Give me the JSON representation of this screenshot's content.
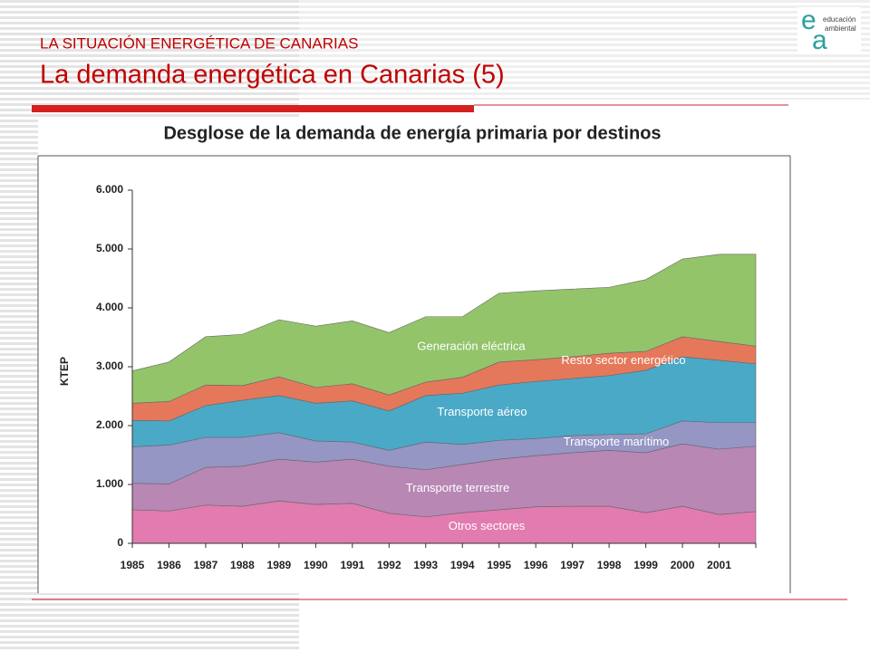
{
  "header": {
    "kicker": "LA SITUACIÓN ENERGÉTICA DE CANARIAS",
    "title": "La demanda energética en Canarias (5)",
    "logo": {
      "e": "e",
      "a": "a",
      "line1": "educación",
      "line2": "ambiental"
    }
  },
  "chart_data": {
    "type": "stacked_area",
    "title": "Desglose de la demanda de energía primaria por destinos",
    "y_label": "KTEP",
    "categories": [
      "1985",
      "1986",
      "1987",
      "1988",
      "1989",
      "1990",
      "1991",
      "1992",
      "1993",
      "1994",
      "1995",
      "1996",
      "1997",
      "1998",
      "1999",
      "2000",
      "2001",
      null
    ],
    "ylim": [
      0,
      6000
    ],
    "yticks": [
      0,
      {
        "value": 1000,
        "label": "1.000"
      },
      {
        "value": 2000,
        "label": "2.000"
      },
      {
        "value": 3000,
        "label": "3.000"
      },
      {
        "value": 4000,
        "label": "4.000"
      },
      {
        "value": 5000,
        "label": "5.000"
      },
      {
        "value": 6000,
        "label": "6.000"
      }
    ],
    "series": [
      {
        "name": "Otros sectores",
        "color": "#e27bb0",
        "values": [
          570,
          550,
          650,
          630,
          720,
          660,
          680,
          510,
          450,
          520,
          570,
          620,
          630,
          630,
          520,
          630,
          490,
          540
        ]
      },
      {
        "name": "Transporte terrestre",
        "color": "#b887b4",
        "values": [
          450,
          460,
          640,
          680,
          710,
          720,
          750,
          800,
          800,
          820,
          860,
          870,
          910,
          950,
          1020,
          1060,
          1110,
          1110
        ]
      },
      {
        "name": "Transporte marítimo",
        "color": "#9596c4",
        "values": [
          620,
          660,
          510,
          490,
          450,
          360,
          290,
          270,
          470,
          340,
          320,
          290,
          290,
          270,
          320,
          390,
          450,
          400
        ]
      },
      {
        "name": "Transporte aéreo",
        "color": "#4aa9c6",
        "values": [
          450,
          410,
          540,
          630,
          630,
          640,
          700,
          670,
          790,
          870,
          940,
          970,
          970,
          1000,
          1080,
          1090,
          1060,
          1000
        ]
      },
      {
        "name": "Resto sector energético",
        "color": "#e5785a",
        "values": [
          290,
          330,
          350,
          250,
          320,
          270,
          290,
          270,
          230,
          270,
          390,
          370,
          370,
          380,
          320,
          340,
          320,
          300
        ]
      },
      {
        "name": "Generación eléctrica",
        "color": "#93c46a",
        "values": [
          550,
          670,
          820,
          870,
          970,
          1040,
          1070,
          1060,
          1110,
          1030,
          1170,
          1170,
          1150,
          1120,
          1220,
          1320,
          1480,
          1560
        ]
      }
    ]
  }
}
